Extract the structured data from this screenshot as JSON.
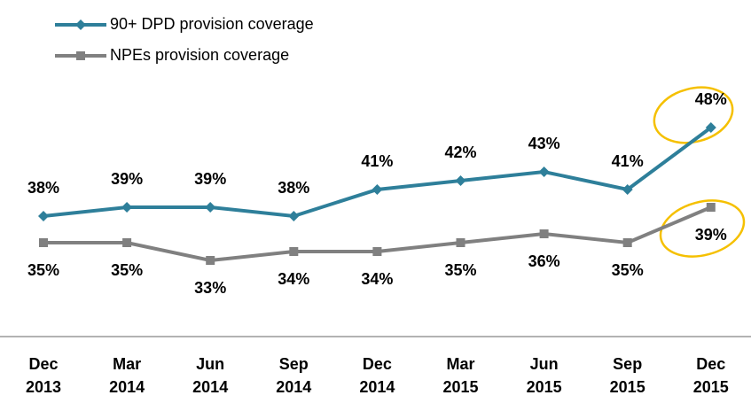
{
  "chart_data": {
    "type": "line",
    "categories": [
      "Dec 2013",
      "Mar 2014",
      "Jun 2014",
      "Sep 2014",
      "Dec 2014",
      "Mar 2015",
      "Jun 2015",
      "Sep 2015",
      "Dec 2015"
    ],
    "series": [
      {
        "name": "90+ DPD provision coverage",
        "color": "#2e7f9a",
        "marker": "diamond",
        "values": [
          38,
          39,
          39,
          38,
          41,
          42,
          43,
          41,
          48
        ],
        "value_labels": [
          "38%",
          "39%",
          "39%",
          "38%",
          "41%",
          "42%",
          "43%",
          "41%",
          "48%"
        ]
      },
      {
        "name": "NPEs provision coverage",
        "color": "#808080",
        "marker": "square",
        "values": [
          35,
          35,
          33,
          34,
          34,
          35,
          36,
          35,
          39
        ],
        "value_labels": [
          "35%",
          "35%",
          "33%",
          "34%",
          "34%",
          "35%",
          "36%",
          "35%",
          "39%"
        ]
      }
    ]
  }
}
